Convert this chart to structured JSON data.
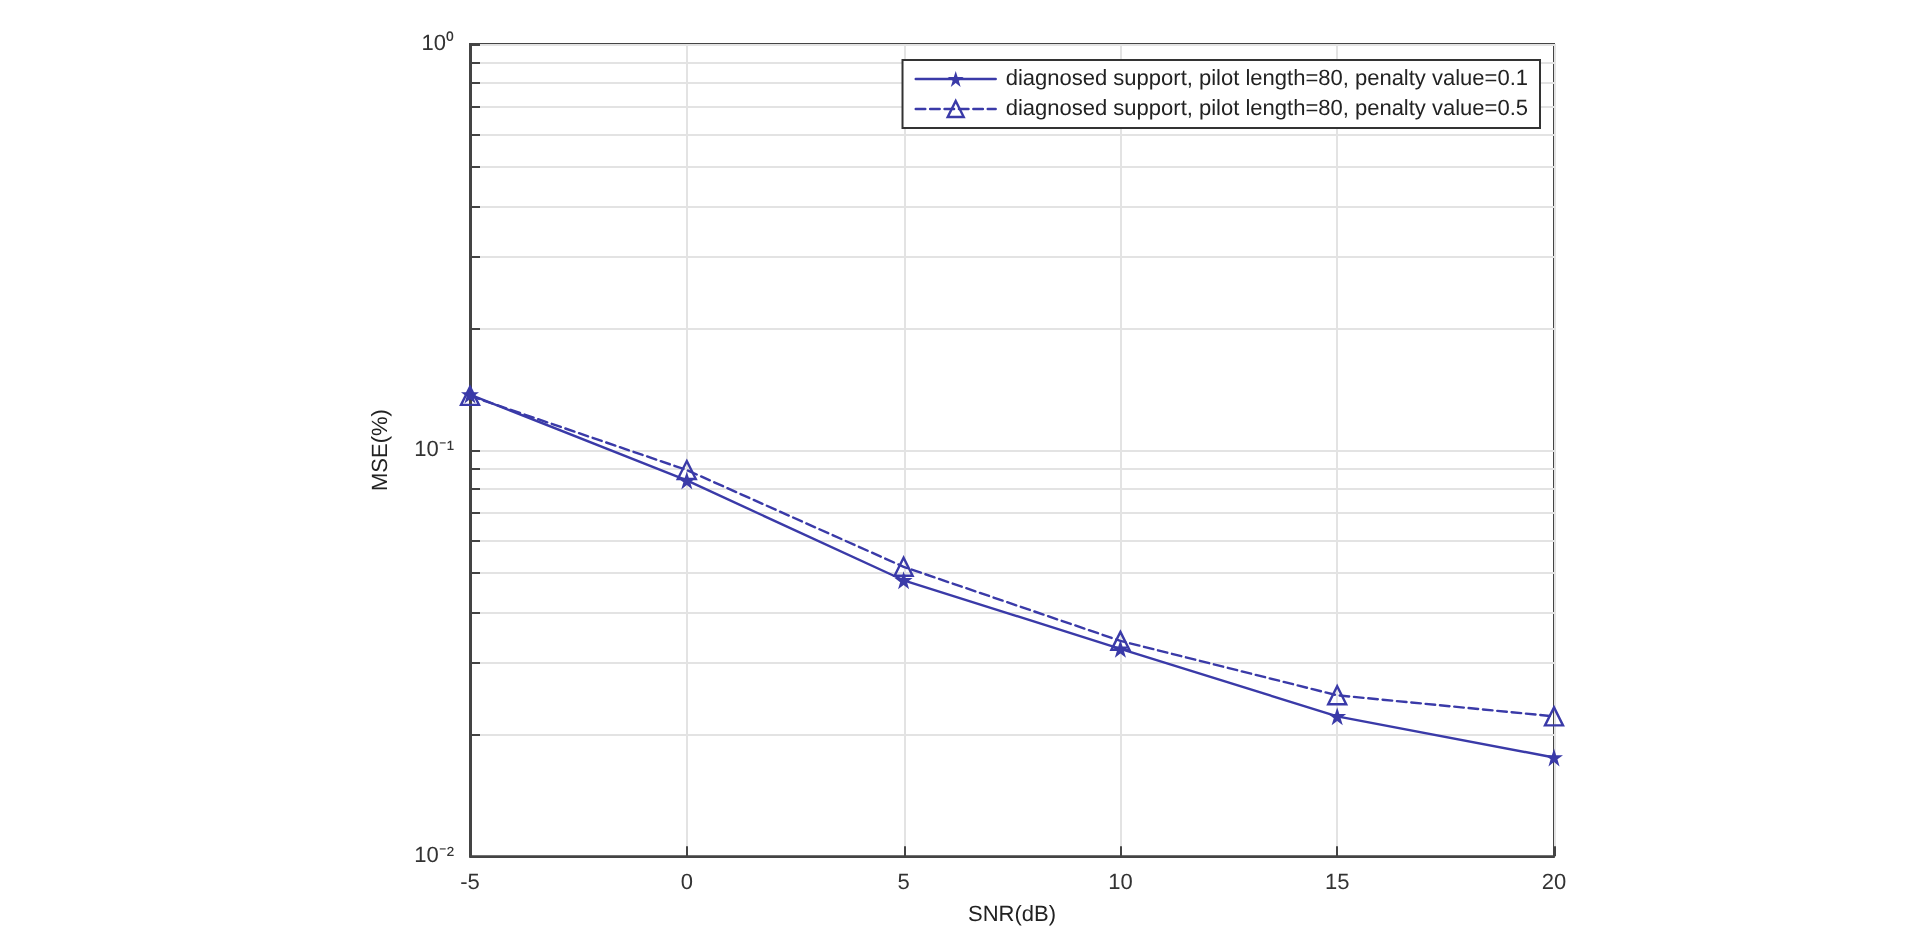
{
  "chart_data": {
    "type": "line",
    "xlabel": "SNR(dB)",
    "ylabel": "MSE(%)",
    "x": [
      -5,
      0,
      5,
      10,
      15,
      20
    ],
    "series": [
      {
        "name": "diagnosed support, pilot length=80, penalty value=0.1",
        "color": "#3a3aa8",
        "marker": "star",
        "line_style": "solid",
        "values": [
          0.137,
          0.0842,
          0.0478,
          0.0324,
          0.0221,
          0.0175
        ]
      },
      {
        "name": "diagnosed support, pilot length=80, penalty value=0.5",
        "color": "#3a3aa8",
        "marker": "triangle",
        "line_style": "dashed",
        "values": [
          0.136,
          0.0893,
          0.0516,
          0.0339,
          0.0249,
          0.0221
        ]
      }
    ],
    "log": "y",
    "xlim": [
      -5,
      20
    ],
    "xticks": [
      -5,
      0,
      5,
      10,
      15,
      20
    ],
    "ylim": [
      0.01,
      1
    ],
    "yticks": [
      {
        "value": 0.01,
        "label": "10⁻²"
      },
      {
        "value": 0.02,
        "label": null
      },
      {
        "value": 0.03,
        "label": null
      },
      {
        "value": 0.04,
        "label": null
      },
      {
        "value": 0.05,
        "label": null
      },
      {
        "value": 0.06,
        "label": null
      },
      {
        "value": 0.07,
        "label": null
      },
      {
        "value": 0.08,
        "label": null
      },
      {
        "value": 0.09,
        "label": null
      },
      {
        "value": 0.1,
        "label": "10⁻¹"
      },
      {
        "value": 0.2,
        "label": null
      },
      {
        "value": 0.3,
        "label": null
      },
      {
        "value": 0.4,
        "label": null
      },
      {
        "value": 0.5,
        "label": null
      },
      {
        "value": 0.6,
        "label": null
      },
      {
        "value": 0.7,
        "label": null
      },
      {
        "value": 0.8,
        "label": null
      },
      {
        "value": 0.9,
        "label": null
      },
      {
        "value": 1,
        "label": "10⁰"
      }
    ],
    "grid": true,
    "legend": "top right"
  }
}
